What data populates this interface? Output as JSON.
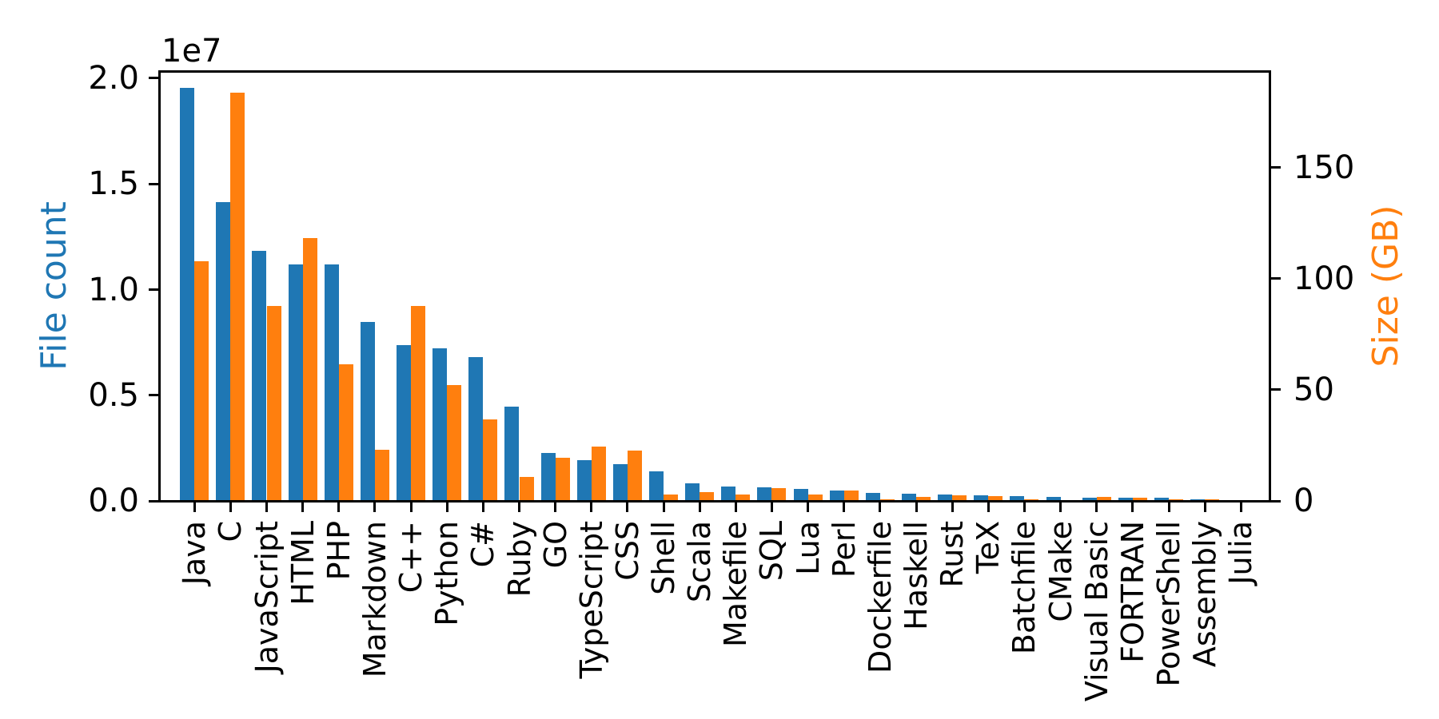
{
  "figure": {
    "background": "#ffffff",
    "text_color": "#000000",
    "accent_blue": "#1f77b4",
    "accent_orange": "#ff7f0e"
  },
  "chart_data": {
    "type": "bar",
    "title": "",
    "categories": [
      "Java",
      "C",
      "JavaScript",
      "HTML",
      "PHP",
      "Markdown",
      "C++",
      "Python",
      "C#",
      "Ruby",
      "GO",
      "TypeScript",
      "CSS",
      "Shell",
      "Scala",
      "Makefile",
      "SQL",
      "Lua",
      "Perl",
      "Dockerfile",
      "Haskell",
      "Rust",
      "TeX",
      "Batchfile",
      "CMake",
      "Visual Basic",
      "FORTRAN",
      "PowerShell",
      "Assembly",
      "Julia"
    ],
    "series": [
      {
        "name": "File count",
        "axis": "left",
        "color": "#1f77b4",
        "values": [
          19548190,
          14143113,
          11839883,
          11178557,
          11177610,
          8464626,
          7380520,
          7226626,
          6811652,
          4473331,
          2265436,
          1940406,
          1734406,
          1385648,
          835755,
          679430,
          656671,
          578554,
          497949,
          366505,
          340623,
          322431,
          251015,
          236945,
          175282,
          155652,
          142038,
          136846,
          82905,
          58317
        ]
      },
      {
        "name": "Size (GB)",
        "axis": "right",
        "color": "#ff7f0e",
        "values": [
          107.7,
          183.83,
          87.82,
          118.12,
          61.41,
          23.09,
          87.73,
          52.03,
          36.83,
          10.95,
          19.28,
          24.59,
          22.67,
          3.01,
          3.87,
          2.92,
          5.67,
          2.81,
          4.7,
          0.71,
          1.85,
          2.68,
          2.15,
          0.7,
          0.54,
          1.91,
          1.62,
          0.69,
          0.78,
          0.29
        ]
      }
    ],
    "left_axis": {
      "label": "File count",
      "offset_label": "1e7",
      "tick_values": [
        0,
        5000000,
        10000000,
        15000000,
        20000000
      ],
      "tick_labels": [
        "0.0",
        "0.5",
        "1.0",
        "1.5",
        "2.0"
      ],
      "range": [
        0,
        20300000
      ]
    },
    "right_axis": {
      "label": "Size (GB)",
      "tick_values": [
        0,
        50,
        100,
        150
      ],
      "tick_labels": [
        "0",
        "50",
        "100",
        "150"
      ],
      "range": [
        0,
        193
      ]
    },
    "x_axis": {
      "tick_rotation_deg": 90
    },
    "grid": false,
    "legend": null
  }
}
